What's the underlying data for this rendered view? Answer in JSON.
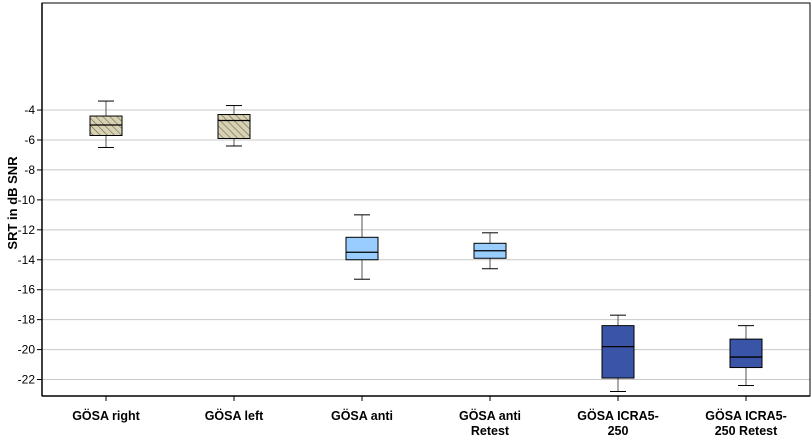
{
  "chart_data": {
    "type": "box",
    "ylabel": "SRT in dB SNR",
    "xlabel": "",
    "ylim": [
      -23,
      -3
    ],
    "yticks": [
      -4,
      -6,
      -8,
      -10,
      -12,
      -14,
      -16,
      -18,
      -20,
      -22
    ],
    "grid": "horizontal",
    "categories": [
      [
        "GÖSA right"
      ],
      [
        "GÖSA left"
      ],
      [
        "GÖSA anti"
      ],
      [
        "GÖSA anti",
        "Retest"
      ],
      [
        "GÖSA ICRA5-",
        "250"
      ],
      [
        "GÖSA ICRA5-",
        "250 Retest"
      ]
    ],
    "boxes": [
      {
        "whisker_low": -6.5,
        "q1": -5.7,
        "median": -5.0,
        "q3": -4.4,
        "whisker_high": -3.4,
        "fill": "#d8d2b4",
        "hatch": true
      },
      {
        "whisker_low": -6.4,
        "q1": -5.9,
        "median": -4.7,
        "q3": -4.3,
        "whisker_high": -3.7,
        "fill": "#d8d2b4",
        "hatch": true
      },
      {
        "whisker_low": -15.3,
        "q1": -14.0,
        "median": -13.5,
        "q3": -12.5,
        "whisker_high": -11.0,
        "fill": "#99ccff",
        "hatch": false
      },
      {
        "whisker_low": -14.6,
        "q1": -13.9,
        "median": -13.4,
        "q3": -12.9,
        "whisker_high": -12.2,
        "fill": "#99ccff",
        "hatch": false
      },
      {
        "whisker_low": -22.8,
        "q1": -21.9,
        "median": -19.8,
        "q3": -18.4,
        "whisker_high": -17.7,
        "fill": "#3a55a8",
        "hatch": false
      },
      {
        "whisker_low": -22.4,
        "q1": -21.2,
        "median": -20.5,
        "q3": -19.3,
        "whisker_high": -18.4,
        "fill": "#3a55a8",
        "hatch": false
      }
    ],
    "colors": {
      "grid": "#c8c8c8",
      "axis": "#000000",
      "frame": "#000000"
    }
  }
}
